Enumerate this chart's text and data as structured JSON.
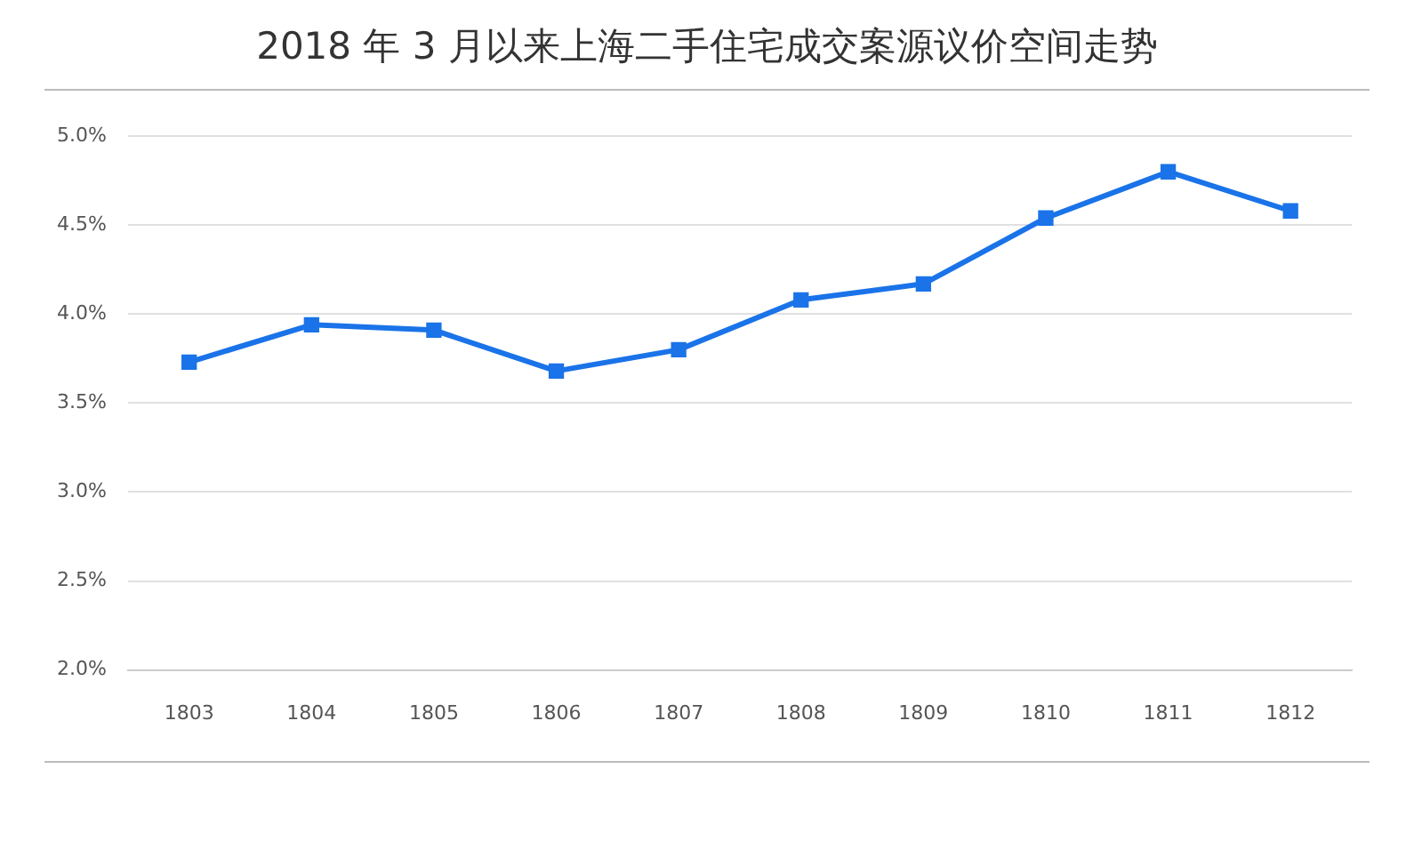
{
  "chart_data": {
    "type": "line",
    "title": "2018 年 3 月以来上海二手住宅成交案源议价空间走势",
    "categories": [
      "1803",
      "1804",
      "1805",
      "1806",
      "1807",
      "1808",
      "1809",
      "1810",
      "1811",
      "1812"
    ],
    "series": [
      {
        "color": "#1a73e8",
        "values": [
          3.73,
          3.94,
          3.91,
          3.68,
          3.8,
          4.08,
          4.17,
          4.54,
          4.8,
          4.58
        ]
      }
    ],
    "ylim": [
      2.0,
      5.0
    ],
    "yticks": [
      {
        "value": 2.0,
        "label": "2.0%"
      },
      {
        "value": 2.5,
        "label": "2.5%"
      },
      {
        "value": 3.0,
        "label": "3.0%"
      },
      {
        "value": 3.5,
        "label": "3.5%"
      },
      {
        "value": 4.0,
        "label": "4.0%"
      },
      {
        "value": 4.5,
        "label": "4.5%"
      },
      {
        "value": 5.0,
        "label": "5.0%"
      }
    ],
    "grid": "y",
    "legend": false,
    "marker": "square",
    "line_style": "solid"
  }
}
